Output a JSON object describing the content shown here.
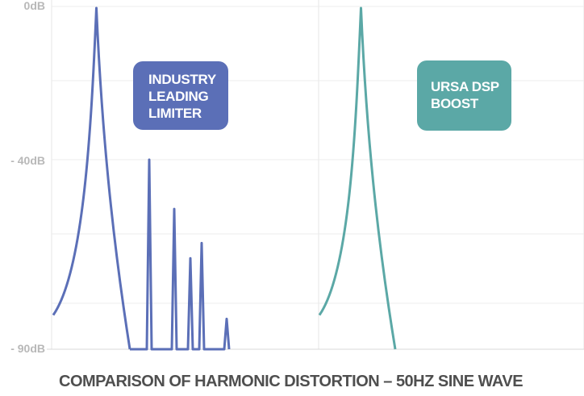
{
  "chart_data": {
    "type": "line",
    "title": "COMPARISON OF HARMONIC DISTORTION – 50HZ SINE WAVE",
    "y_ticks": [
      "0dB",
      "- 40dB",
      "- 90dB"
    ],
    "ylim": [
      -90,
      0
    ],
    "grid": true,
    "series": [
      {
        "name": "INDUSTRY LEADING LIMITER",
        "label_lines": [
          "INDUSTRY",
          "LEADING",
          "LIMITER"
        ],
        "color": "#5b6fb7",
        "box_color": "#5b6fb7",
        "fundamental_db": 0,
        "harmonics_db": [
          -40,
          -53,
          -66,
          -62,
          -82
        ]
      },
      {
        "name": "URSA DSP BOOST",
        "label_lines": [
          "URSA DSP",
          "BOOST"
        ],
        "color": "#5ba8a6",
        "box_color": "#5ba8a6",
        "fundamental_db": 0,
        "harmonics_db": []
      }
    ]
  }
}
